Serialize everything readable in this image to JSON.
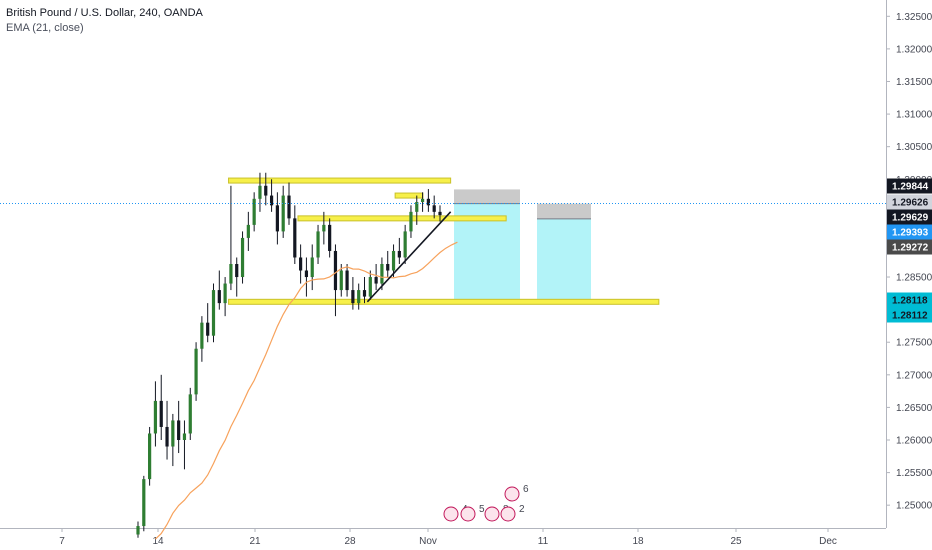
{
  "chart_data": {
    "type": "candlestick",
    "title": "British Pound / U.S. Dollar, 240, OANDA",
    "indicator": "EMA (21, close)",
    "ylim": [
      1.2465,
      1.3275
    ],
    "y_ticks": [
      "1.32500",
      "1.32000",
      "1.31500",
      "1.31000",
      "1.30500",
      "1.30000",
      "1.29500",
      "1.29000",
      "1.28500",
      "1.28000",
      "1.27500",
      "1.27000",
      "1.26500",
      "1.26000",
      "1.25500",
      "1.25000"
    ],
    "x_ticks": [
      "7",
      "14",
      "21",
      "28",
      "Nov",
      "11",
      "18",
      "25",
      "Dec"
    ],
    "price_tags": [
      {
        "label": "1.29844",
        "value": 1.29844,
        "bg": "#131722",
        "fg": "#ffffff"
      },
      {
        "label": "1.29626",
        "value": 1.29626,
        "bg": "#d1d4dc",
        "fg": "#131722"
      },
      {
        "label": "1.29629",
        "value": 1.29629,
        "bg": "#131722",
        "fg": "#ffffff"
      },
      {
        "label": "1.29393",
        "value": 1.29393,
        "bg": "#2196f3",
        "fg": "#ffffff"
      },
      {
        "label": "1.29272",
        "value": 1.29272,
        "bg": "#4a4a4a",
        "fg": "#ffffff"
      },
      {
        "label": "1.28118",
        "value": 1.28118,
        "bg": "#00bcd4",
        "fg": "#131722"
      },
      {
        "label": "1.28112",
        "value": 1.28112,
        "bg": "#00bcd4",
        "fg": "#131722"
      }
    ],
    "current_price": 1.29629,
    "candles": [
      [
        1.2455,
        1.2475,
        1.245,
        1.2468
      ],
      [
        1.2468,
        1.2545,
        1.246,
        1.254
      ],
      [
        1.254,
        1.262,
        1.253,
        1.261
      ],
      [
        1.261,
        1.269,
        1.259,
        1.266
      ],
      [
        1.266,
        1.27,
        1.26,
        1.262
      ],
      [
        1.262,
        1.266,
        1.257,
        1.259
      ],
      [
        1.259,
        1.264,
        1.256,
        1.263
      ],
      [
        1.263,
        1.266,
        1.258,
        1.26
      ],
      [
        1.26,
        1.263,
        1.2555,
        1.261
      ],
      [
        1.261,
        1.268,
        1.26,
        1.267
      ],
      [
        1.267,
        1.275,
        1.266,
        1.274
      ],
      [
        1.274,
        1.279,
        1.272,
        1.278
      ],
      [
        1.278,
        1.281,
        1.275,
        1.276
      ],
      [
        1.276,
        1.284,
        1.275,
        1.283
      ],
      [
        1.283,
        1.286,
        1.28,
        1.281
      ],
      [
        1.281,
        1.285,
        1.279,
        1.284
      ],
      [
        1.284,
        1.299,
        1.283,
        1.287
      ],
      [
        1.287,
        1.288,
        1.282,
        1.285
      ],
      [
        1.285,
        1.292,
        1.284,
        1.291
      ],
      [
        1.291,
        1.295,
        1.289,
        1.293
      ],
      [
        1.293,
        1.298,
        1.292,
        1.297
      ],
      [
        1.297,
        1.301,
        1.295,
        1.299
      ],
      [
        1.299,
        1.301,
        1.296,
        1.2975
      ],
      [
        1.2975,
        1.3,
        1.295,
        1.296
      ],
      [
        1.296,
        1.298,
        1.29,
        1.292
      ],
      [
        1.292,
        1.299,
        1.291,
        1.2975
      ],
      [
        1.2975,
        1.2995,
        1.293,
        1.294
      ],
      [
        1.294,
        1.296,
        1.287,
        1.288
      ],
      [
        1.288,
        1.29,
        1.284,
        1.286
      ],
      [
        1.286,
        1.288,
        1.282,
        1.285
      ],
      [
        1.285,
        1.29,
        1.283,
        1.288
      ],
      [
        1.288,
        1.293,
        1.287,
        1.292
      ],
      [
        1.292,
        1.295,
        1.29,
        1.293
      ],
      [
        1.293,
        1.294,
        1.288,
        1.289
      ],
      [
        1.289,
        1.29,
        1.279,
        1.283
      ],
      [
        1.283,
        1.287,
        1.282,
        1.286
      ],
      [
        1.286,
        1.287,
        1.282,
        1.283
      ],
      [
        1.283,
        1.285,
        1.28,
        1.281
      ],
      [
        1.281,
        1.284,
        1.28,
        1.283
      ],
      [
        1.283,
        1.285,
        1.281,
        1.282
      ],
      [
        1.282,
        1.286,
        1.2815,
        1.285
      ],
      [
        1.285,
        1.287,
        1.283,
        1.284
      ],
      [
        1.284,
        1.288,
        1.283,
        1.287
      ],
      [
        1.287,
        1.289,
        1.285,
        1.286
      ],
      [
        1.286,
        1.29,
        1.285,
        1.289
      ],
      [
        1.289,
        1.291,
        1.287,
        1.288
      ],
      [
        1.288,
        1.293,
        1.287,
        1.292
      ],
      [
        1.292,
        1.296,
        1.291,
        1.295
      ],
      [
        1.295,
        1.2975,
        1.293,
        1.2965
      ],
      [
        1.2965,
        1.298,
        1.295,
        1.297
      ],
      [
        1.297,
        1.2985,
        1.295,
        1.296
      ],
      [
        1.296,
        1.2975,
        1.294,
        1.295
      ],
      [
        1.295,
        1.296,
        1.2935,
        1.2945
      ]
    ],
    "horizontal_zones": [
      {
        "y": 1.2998,
        "x_start": "Oct 19",
        "x_end": "Nov 4"
      },
      {
        "y": 1.2975,
        "x_start": "Oct 31",
        "x_end": "Nov 2"
      },
      {
        "y": 1.294,
        "x_start": "Oct 24",
        "x_end": "Nov 8"
      },
      {
        "y": 1.2812,
        "x_start": "Oct 19",
        "x_end": "Nov 19"
      }
    ],
    "trend_line": {
      "from": [
        1.2812,
        "Oct 29"
      ],
      "to": [
        1.295,
        "Nov 4"
      ]
    },
    "positions": [
      {
        "entry": 1.29626,
        "stop": 1.29844,
        "target": 1.28118
      },
      {
        "entry": 1.29393,
        "stop": 1.29626,
        "target": 1.28112
      }
    ],
    "event_icons": [
      "4",
      "5",
      "8",
      "2",
      "6"
    ]
  }
}
